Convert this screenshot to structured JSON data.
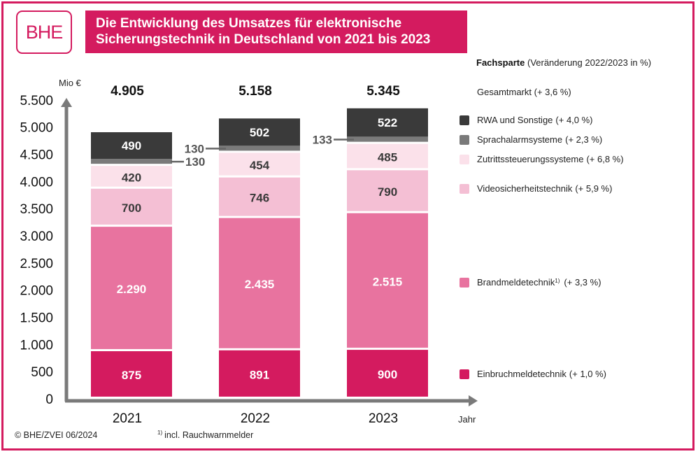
{
  "header": {
    "logo_text": "BHE",
    "title_line1": "Die Entwicklung des Umsatzes für elektronische",
    "title_line2": "Sicherungstechnik in Deutschland von 2021 bis 2023"
  },
  "legend": {
    "heading_bold": "Fachsparte",
    "heading_rest": " (Veränderung 2022/2023 in %)",
    "total_label": "Gesamtmarkt (+ 3,6 %)"
  },
  "footer": {
    "copyright": "© BHE/ZVEI 06/2024",
    "footnote_mark": "1)",
    "footnote_text": "incl. Rauchwarnmelder"
  },
  "chart_data": {
    "type": "bar",
    "stacked": true,
    "title": "Die Entwicklung des Umsatzes für elektronische Sicherungstechnik in Deutschland von 2021 bis 2023",
    "ylabel": "Mio €",
    "xlabel": "Jahr",
    "ylim": [
      0,
      5500
    ],
    "yticks": [
      0,
      500,
      1000,
      1500,
      2000,
      2500,
      3000,
      3500,
      4000,
      4500,
      5000,
      5500
    ],
    "ytick_labels": [
      "0",
      "500",
      "1.000",
      "1.500",
      "2.000",
      "2.500",
      "3.000",
      "3.500",
      "4.000",
      "4.500",
      "5.000",
      "5.500"
    ],
    "grid": false,
    "legend_position": "right",
    "categories": [
      "2021",
      "2022",
      "2023"
    ],
    "totals": [
      4905,
      5158,
      5345
    ],
    "total_labels": [
      "4.905",
      "5.158",
      "5.345"
    ],
    "series": [
      {
        "name": "Einbruchmeldetechnik",
        "change": "(+ 1,0 %)",
        "color": "#d41b5f",
        "label_color": "#ffffff",
        "values": [
          875,
          891,
          900
        ],
        "labels": [
          "875",
          "891",
          "900"
        ]
      },
      {
        "name": "Brandmeldetechnik",
        "footnote": "1)",
        "change": "(+ 3,3 %)",
        "color": "#e8739f",
        "label_color": "#ffffff",
        "values": [
          2290,
          2435,
          2515
        ],
        "labels": [
          "2.290",
          "2.435",
          "2.515"
        ]
      },
      {
        "name": "Videosicherheitstechnik",
        "change": "(+ 5,9 %)",
        "color": "#f4bfd4",
        "label_color": "#3a3a3a",
        "values": [
          700,
          746,
          790
        ],
        "labels": [
          "700",
          "746",
          "790"
        ]
      },
      {
        "name": "Zutrittssteuerungssysteme",
        "change": "(+ 6,8 %)",
        "color": "#fbe1ea",
        "label_color": "#3a3a3a",
        "values": [
          420,
          454,
          485
        ],
        "labels": [
          "420",
          "454",
          "485"
        ]
      },
      {
        "name": "Sprachalarmsysteme",
        "change": "(+ 2,3 %)",
        "color": "#7a7a7a",
        "label_color": "#555555",
        "values": [
          130,
          130,
          133
        ],
        "labels": [
          "130",
          "130",
          "133"
        ],
        "callout": true
      },
      {
        "name": "RWA und Sonstige",
        "change": "(+ 4,0 %)",
        "color": "#3a3a3a",
        "label_color": "#ffffff",
        "values": [
          490,
          502,
          522
        ],
        "labels": [
          "490",
          "502",
          "522"
        ]
      }
    ]
  }
}
